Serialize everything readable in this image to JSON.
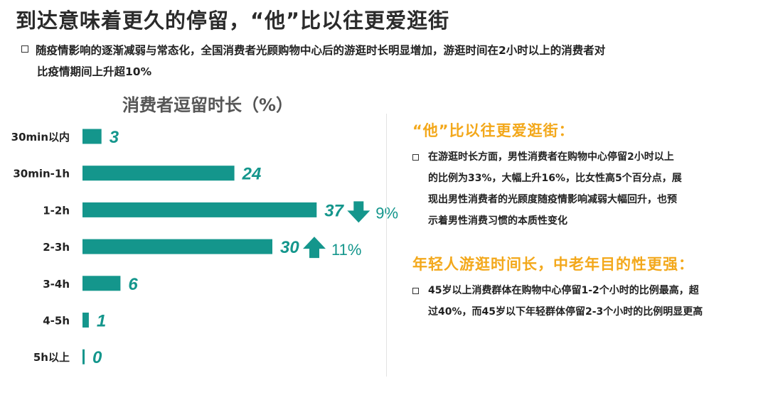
{
  "title": "到达意味着更久的停留，“他”比以往更爱逛街",
  "intro": {
    "line1": "随疫情影响的逐渐减弱与常态化，全国消费者光顾购物中心后的游逛时长明显增加，游逛时间在2小时以上的消费者对",
    "line2": "比疫情期间上升超10%"
  },
  "chart_data": {
    "type": "bar",
    "orientation": "horizontal",
    "title": "消费者逗留时长（%）",
    "categories": [
      "30min以内",
      "30min-1h",
      "1-2h",
      "2-3h",
      "3-4h",
      "4-5h",
      "5h以上"
    ],
    "values": [
      3,
      24,
      37,
      30,
      6,
      1,
      0
    ],
    "bar_color": "#14968c",
    "label_color": "#14968c",
    "annotations": [
      {
        "category": "1-2h",
        "direction": "down",
        "text": "9%"
      },
      {
        "category": "2-3h",
        "direction": "up",
        "text": "11%"
      }
    ]
  },
  "sections": [
    {
      "heading": "“他”比以往更爱逛街：",
      "lines": [
        "在游逛时长方面，男性消费者在购物中心停留2小时以上",
        "的比例为33%，大幅上升16%，比女性高5个百分点，展",
        "现出男性消费者的光顾度随疫情影响减弱大幅回升，也预",
        "示着男性消费习惯的本质性变化"
      ]
    },
    {
      "heading": "年轻人游逛时间长，中老年目的性更强：",
      "lines": [
        "45岁以上消费群体在购物中心停留1-2个小时的比例最高，超",
        "过40%，而45岁以下年轻群体停留2-3个小时的比例明显更高"
      ]
    }
  ]
}
